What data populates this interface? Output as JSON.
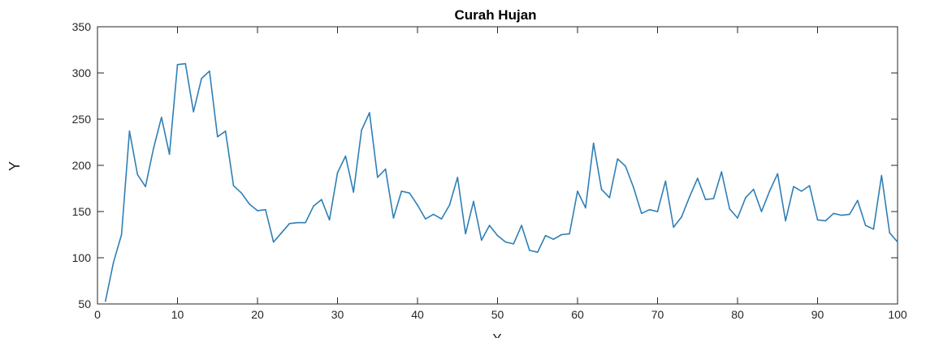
{
  "chart_data": {
    "type": "line",
    "title": "Curah Hujan",
    "xlabel": "X",
    "ylabel": "Y",
    "xlim": [
      0,
      100
    ],
    "ylim": [
      50,
      350
    ],
    "xticks": [
      0,
      10,
      20,
      30,
      40,
      50,
      60,
      70,
      80,
      90,
      100
    ],
    "yticks": [
      50,
      100,
      150,
      200,
      250,
      300,
      350
    ],
    "grid": false,
    "line_color": "#2f7fb5",
    "x": [
      1,
      2,
      3,
      4,
      5,
      6,
      7,
      8,
      9,
      10,
      11,
      12,
      13,
      14,
      15,
      16,
      17,
      18,
      19,
      20,
      21,
      22,
      23,
      24,
      25,
      26,
      27,
      28,
      29,
      30,
      31,
      32,
      33,
      34,
      35,
      36,
      37,
      38,
      39,
      40,
      41,
      42,
      43,
      44,
      45,
      46,
      47,
      48,
      49,
      50,
      51,
      52,
      53,
      54,
      55,
      56,
      57,
      58,
      59,
      60,
      61,
      62,
      63,
      64,
      65,
      66,
      67,
      68,
      69,
      70,
      71,
      72,
      73,
      74,
      75,
      76,
      77,
      78,
      79,
      80,
      81,
      82,
      83,
      84,
      85,
      86,
      87,
      88,
      89,
      90,
      91,
      92,
      93,
      94,
      95,
      96,
      97,
      98,
      99,
      100
    ],
    "y": [
      53,
      95,
      125,
      237,
      190,
      177,
      218,
      252,
      212,
      309,
      310,
      258,
      294,
      302,
      231,
      237,
      178,
      170,
      158,
      151,
      152,
      117,
      127,
      137,
      138,
      138,
      156,
      163,
      141,
      192,
      210,
      171,
      238,
      257,
      187,
      196,
      143,
      172,
      170,
      157,
      142,
      147,
      142,
      157,
      187,
      126,
      161,
      119,
      135,
      124,
      117,
      115,
      135,
      108,
      106,
      124,
      120,
      125,
      126,
      172,
      154,
      224,
      174,
      165,
      207,
      199,
      176,
      148,
      152,
      150,
      183,
      133,
      144,
      166,
      186,
      163,
      164,
      193,
      153,
      143,
      165,
      174,
      150,
      172,
      191,
      140,
      177,
      172,
      178,
      141,
      140,
      148,
      146,
      147,
      162,
      135,
      131,
      189,
      127,
      117
    ]
  }
}
